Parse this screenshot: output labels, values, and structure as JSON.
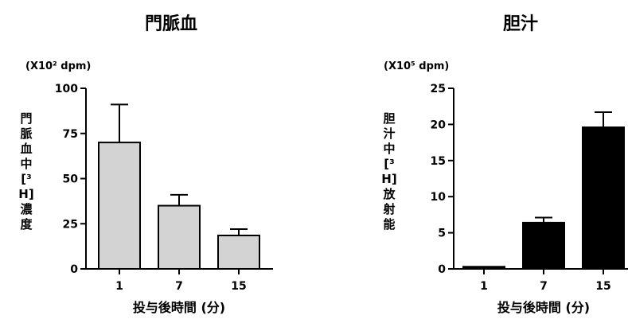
{
  "chart_data": [
    {
      "type": "bar",
      "title": "門脈血",
      "unit": "(X10² dpm)",
      "ylabel": "門脈血中[³H]濃度",
      "xlabel": "投与後時間 (分)",
      "categories": [
        "1",
        "7",
        "15"
      ],
      "values": [
        70,
        35,
        18.5
      ],
      "errors": [
        21,
        6,
        3.5
      ],
      "ylim": [
        0,
        100
      ],
      "yticks": [
        "0",
        "25",
        "50",
        "75",
        "100"
      ],
      "bar_color": "#d3d3d3",
      "grid": false
    },
    {
      "type": "bar",
      "title": "胆汁",
      "unit": "(X10⁵ dpm)",
      "ylabel": "胆汁中[³H]放射能",
      "xlabel": "投与後時間 (分)",
      "categories": [
        "1",
        "7",
        "15"
      ],
      "values": [
        0.3,
        6.4,
        19.6
      ],
      "errors": [
        0,
        0.7,
        2.1
      ],
      "ylim": [
        0,
        25
      ],
      "yticks": [
        "0",
        "5",
        "10",
        "15",
        "20",
        "25"
      ],
      "bar_color": "#000000",
      "grid": false
    }
  ]
}
